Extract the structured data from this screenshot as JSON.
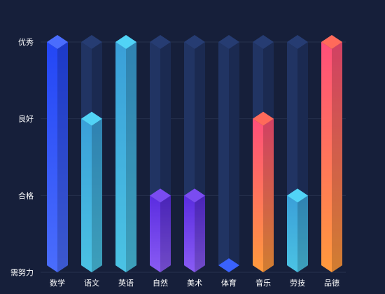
{
  "chart_data": {
    "type": "bar",
    "title": "",
    "xlabel": "",
    "ylabel": "",
    "categories": [
      "数学",
      "语文",
      "英语",
      "自然",
      "美术",
      "体育",
      "音乐",
      "劳技",
      "品德"
    ],
    "y_tick_labels": [
      "需努力",
      "合格",
      "良好",
      "优秀"
    ],
    "ylim": [
      0,
      3
    ],
    "values": [
      3,
      2,
      3,
      1,
      1,
      0,
      2,
      1,
      3
    ],
    "grid": true,
    "legend": "none",
    "bar_style": "3d-prism",
    "colors": {
      "background": "#161f3a",
      "track": "#213463",
      "grid": "#26304d",
      "level_0": [
        "#2f5dfd",
        "#2346f5"
      ],
      "level_1": [
        "#8a5cf4",
        "#5a2ce0"
      ],
      "level_2": [
        "#4bc3e4",
        "#3a9fd8"
      ],
      "level_3": [
        "#ff9a3c",
        "#ff4f7a"
      ],
      "level_3_blue": [
        "#4a6dfd",
        "#2346f5"
      ]
    }
  }
}
